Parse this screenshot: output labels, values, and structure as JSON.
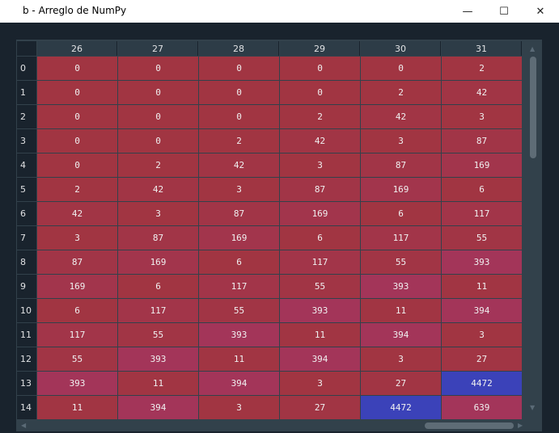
{
  "window": {
    "title": "b - Arreglo de NumPy",
    "minimize_glyph": "—",
    "maximize_glyph": "☐",
    "close_glyph": "✕"
  },
  "colors": {
    "low": "#a13542",
    "mid": "#a3355a",
    "high": "#3b42b9",
    "background": "#19232d"
  },
  "columns": [
    "26",
    "27",
    "28",
    "29",
    "30",
    "31"
  ],
  "rows": [
    {
      "index": "0",
      "values": [
        "0",
        "0",
        "0",
        "0",
        "0",
        "2"
      ]
    },
    {
      "index": "1",
      "values": [
        "0",
        "0",
        "0",
        "0",
        "2",
        "42"
      ]
    },
    {
      "index": "2",
      "values": [
        "0",
        "0",
        "0",
        "2",
        "42",
        "3"
      ]
    },
    {
      "index": "3",
      "values": [
        "0",
        "0",
        "2",
        "42",
        "3",
        "87"
      ]
    },
    {
      "index": "4",
      "values": [
        "0",
        "2",
        "42",
        "3",
        "87",
        "169"
      ]
    },
    {
      "index": "5",
      "values": [
        "2",
        "42",
        "3",
        "87",
        "169",
        "6"
      ]
    },
    {
      "index": "6",
      "values": [
        "42",
        "3",
        "87",
        "169",
        "6",
        "117"
      ]
    },
    {
      "index": "7",
      "values": [
        "3",
        "87",
        "169",
        "6",
        "117",
        "55"
      ]
    },
    {
      "index": "8",
      "values": [
        "87",
        "169",
        "6",
        "117",
        "55",
        "393"
      ]
    },
    {
      "index": "9",
      "values": [
        "169",
        "6",
        "117",
        "55",
        "393",
        "11"
      ]
    },
    {
      "index": "10",
      "values": [
        "6",
        "117",
        "55",
        "393",
        "11",
        "394"
      ]
    },
    {
      "index": "11",
      "values": [
        "117",
        "55",
        "393",
        "11",
        "394",
        "3"
      ]
    },
    {
      "index": "12",
      "values": [
        "55",
        "393",
        "11",
        "394",
        "3",
        "27"
      ]
    },
    {
      "index": "13",
      "values": [
        "393",
        "11",
        "394",
        "3",
        "27",
        "4472"
      ]
    },
    {
      "index": "14",
      "values": [
        "11",
        "394",
        "3",
        "27",
        "4472",
        "639"
      ]
    }
  ]
}
